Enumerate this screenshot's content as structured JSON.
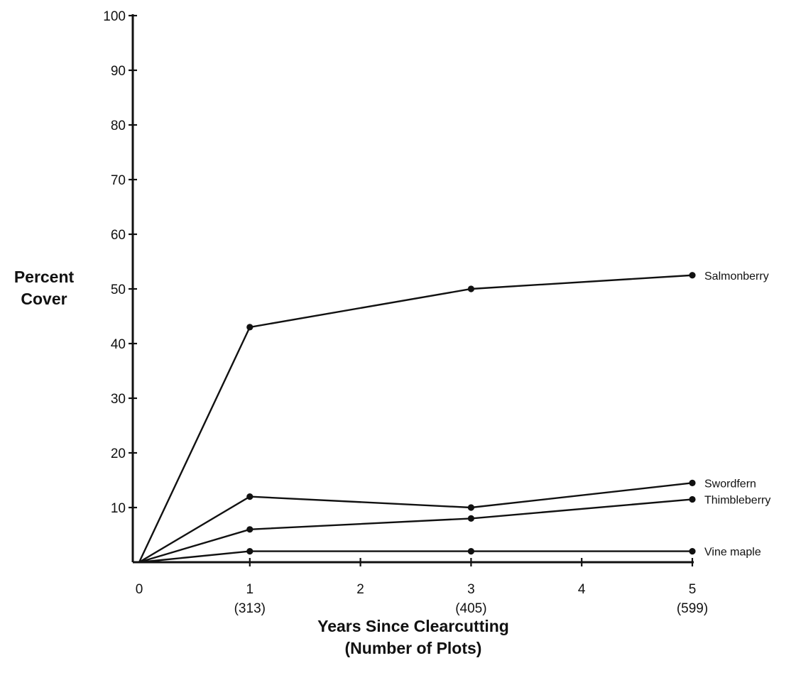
{
  "chart_data": {
    "type": "line",
    "title": "",
    "ylabel": [
      "Percent",
      "Cover"
    ],
    "xlabel": [
      "Years Since Clearcutting",
      "(Number of Plots)"
    ],
    "xlim": [
      0,
      5
    ],
    "ylim": [
      0,
      100
    ],
    "x_ticks": [
      {
        "value": 0,
        "label": "0",
        "sublabel": ""
      },
      {
        "value": 1,
        "label": "1",
        "sublabel": "(313)"
      },
      {
        "value": 2,
        "label": "2",
        "sublabel": ""
      },
      {
        "value": 3,
        "label": "3",
        "sublabel": "(405)"
      },
      {
        "value": 4,
        "label": "4",
        "sublabel": ""
      },
      {
        "value": 5,
        "label": "5",
        "sublabel": "(599)"
      }
    ],
    "y_ticks": [
      {
        "value": 10,
        "label": "10"
      },
      {
        "value": 20,
        "label": "20"
      },
      {
        "value": 30,
        "label": "30"
      },
      {
        "value": 40,
        "label": "40"
      },
      {
        "value": 50,
        "label": "50"
      },
      {
        "value": 60,
        "label": "60"
      },
      {
        "value": 70,
        "label": "70"
      },
      {
        "value": 80,
        "label": "80"
      },
      {
        "value": 90,
        "label": "90"
      },
      {
        "value": 100,
        "label": "100"
      }
    ],
    "x": [
      0,
      1,
      3,
      5
    ],
    "series": [
      {
        "name": "Salmonberry",
        "values": [
          0,
          43,
          50,
          52.5
        ]
      },
      {
        "name": "Swordfern",
        "values": [
          0,
          12,
          10,
          14.5
        ]
      },
      {
        "name": "Thimbleberry",
        "values": [
          0,
          6,
          8,
          11.5
        ]
      },
      {
        "name": "Vine maple",
        "values": [
          0,
          2,
          2,
          2
        ]
      }
    ],
    "grid": false,
    "legend": "inline-right"
  }
}
